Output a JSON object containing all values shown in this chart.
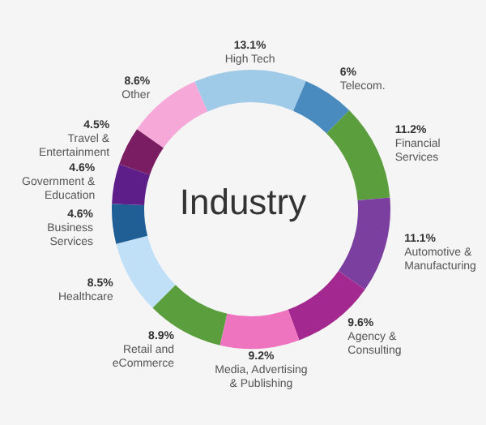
{
  "chart_data": {
    "type": "donut",
    "title": "Industry",
    "categories": [
      "High Tech",
      "Telecom.",
      "Financial Services",
      "Automotive & Manufacturing",
      "Agency & Consulting",
      "Media, Advertising & Publishing",
      "Retail and eCommerce",
      "Healthcare",
      "Business Services",
      "Government & Education",
      "Travel & Entertainment",
      "Other"
    ],
    "values": [
      13.1,
      6,
      11.2,
      11.1,
      9.6,
      9.2,
      8.9,
      8.5,
      4.6,
      4.6,
      4.5,
      8.6
    ],
    "value_labels": [
      "13.1%",
      "6%",
      "11.2%",
      "11.1%",
      "9.6%",
      "9.2%",
      "8.9%",
      "8.5%",
      "4.6%",
      "4.6%",
      "4.5%",
      "8.6%"
    ],
    "colors": [
      "#9fcbe8",
      "#4a8bbf",
      "#5a9e3e",
      "#7b3fa0",
      "#a3288f",
      "#ee74c0",
      "#5a9e3e",
      "#bfe0f7",
      "#1f5f95",
      "#5e1e8a",
      "#7a1d63",
      "#f6a8d9"
    ]
  }
}
